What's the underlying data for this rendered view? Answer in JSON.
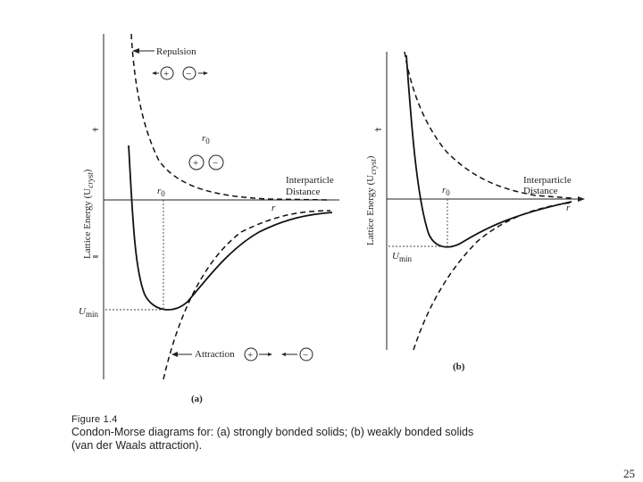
{
  "panel_a": {
    "repulsion": "Repulsion",
    "interparticle_line1": "Interparticle",
    "interparticle_line2": "Distance",
    "r": "r",
    "r0": "r",
    "r0_sub": "0",
    "r0_top": "r",
    "r0_top_sub": "0",
    "plus_sign": "+",
    "minus_sign": "–",
    "umin": "U",
    "umin_sub": "min",
    "attraction": "Attraction",
    "y_label": "Lattice Energy (U",
    "y_label_sub": "cryst",
    "y_label_end": ")",
    "panel_label": "(a)"
  },
  "panel_b": {
    "interparticle_line1": "Interparticle",
    "interparticle_line2": "Distance",
    "r": "r",
    "r0": "r",
    "r0_sub": "0",
    "plus_sign": "+",
    "umin": "U",
    "umin_sub": "min",
    "y_label": "Lattice Energy (U",
    "y_label_sub": "cryst",
    "y_label_end": ")",
    "panel_label": "(b)"
  },
  "ion_plus": "+",
  "ion_minus": "−",
  "caption": {
    "figure": "Figure 1.4",
    "line1": "Condon-Morse diagrams for: (a) strongly bonded solids; (b) weakly bonded solids",
    "line2": "(van der Waals attraction)."
  },
  "page_number": "25"
}
